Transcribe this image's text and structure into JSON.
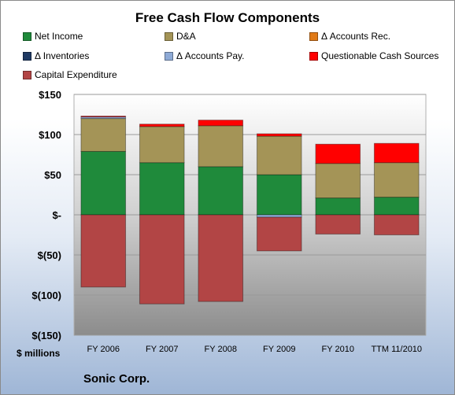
{
  "chart_data": {
    "type": "bar",
    "stacked": true,
    "title": "Free Cash Flow Components",
    "categories": [
      "FY 2006",
      "FY 2007",
      "FY 2008",
      "FY 2009",
      "FY 2010",
      "TTM 11/2010"
    ],
    "y_tick_labels": [
      "$150",
      "$100",
      "$50",
      "$-",
      "$(50)",
      "$(100)",
      "$(150)"
    ],
    "y_tick_values": [
      150,
      100,
      50,
      0,
      -50,
      -100,
      -150
    ],
    "ylim": [
      -150,
      150
    ],
    "unit_label": "$ millions",
    "legend_placement": "top",
    "series": [
      {
        "name": "Net Income",
        "color": "#1f8a3b",
        "values": [
          79,
          65,
          60,
          50,
          21,
          22
        ]
      },
      {
        "name": "D&A",
        "color": "#a49457",
        "values": [
          41,
          45,
          51,
          48,
          43,
          43
        ]
      },
      {
        "name": "Δ Accounts Rec.",
        "color": "#e07a18",
        "values": [
          0,
          0,
          0,
          0,
          0,
          0
        ]
      },
      {
        "name": "Δ Inventories",
        "color": "#1f3a63",
        "values": [
          0,
          0,
          0,
          0,
          0,
          0
        ]
      },
      {
        "name": "Δ Accounts Pay.",
        "color": "#8eaad6",
        "values": [
          2,
          0,
          0,
          -3,
          0,
          0
        ]
      },
      {
        "name": "Questionable Cash Sources",
        "color": "#ff0000",
        "values": [
          1,
          3,
          7,
          3,
          24,
          24
        ]
      },
      {
        "name": "Capital Expenditure",
        "color": "#b24545",
        "values": [
          -90,
          -111,
          -108,
          -42,
          -24,
          -25
        ]
      }
    ]
  },
  "footer": {
    "company": "Sonic Corp."
  }
}
